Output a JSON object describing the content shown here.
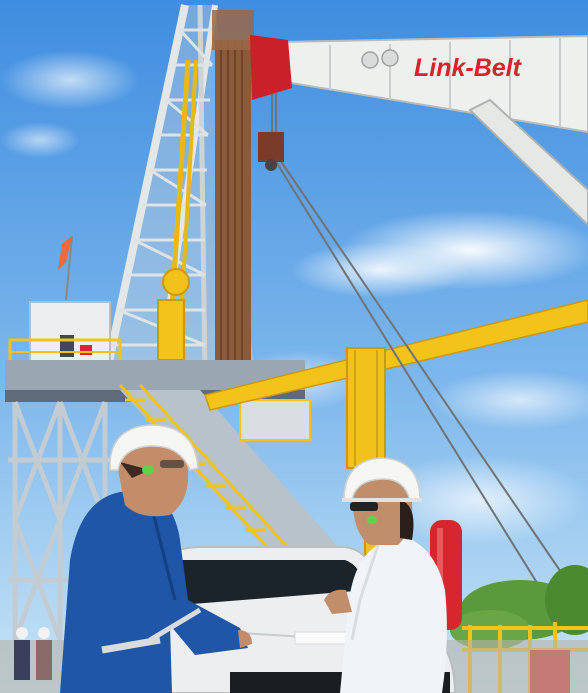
{
  "photo": {
    "crane_brand_text": "Link-Belt"
  },
  "colors": {
    "sky_top": "#3f8de0",
    "sky_bottom": "#bfe0f5",
    "rig_steel": "#e6e9ea",
    "rig_yellow": "#f2c318",
    "crane_white": "#eef0ee",
    "crane_red": "#d8232a",
    "coverall_blue": "#1f56a8",
    "helmet_white": "#f6f6f4",
    "trees": "#5b9a3c"
  }
}
